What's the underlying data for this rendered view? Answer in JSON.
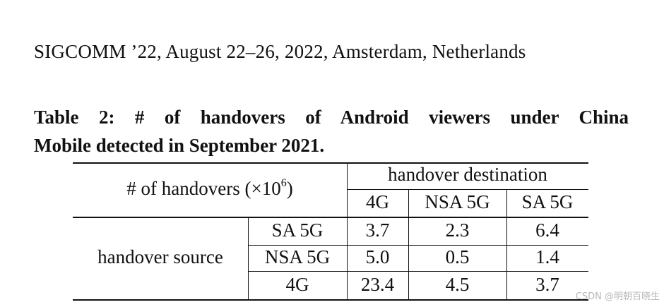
{
  "running_header": "SIGCOMM ’22, August 22–26, 2022, Amsterdam, Netherlands",
  "caption": {
    "line1": "Table 2: # of handovers of Android viewers under China",
    "line2": "Mobile detected in September 2021."
  },
  "table": {
    "corner_label_prefix": "# of handovers (×10",
    "corner_label_exponent": "6",
    "corner_label_suffix": ")",
    "destination_header": "handover destination",
    "destination_columns": [
      "4G",
      "NSA 5G",
      "SA 5G"
    ],
    "source_header": "handover source",
    "rows": [
      {
        "source": "SA 5G",
        "values": [
          "3.7",
          "2.3",
          "6.4"
        ]
      },
      {
        "source": "NSA 5G",
        "values": [
          "5.0",
          "0.5",
          "1.4"
        ]
      },
      {
        "source": "4G",
        "values": [
          "23.4",
          "4.5",
          "3.7"
        ]
      }
    ]
  },
  "watermark": "CSDN @明朝百晓生"
}
